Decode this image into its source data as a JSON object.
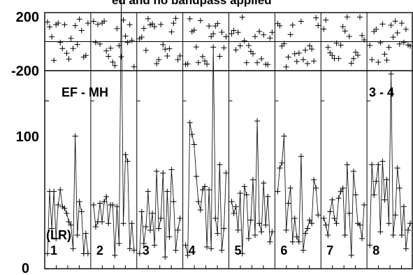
{
  "title_fragment": "ed and no bandpass applied",
  "baseline_label": "EF - MH",
  "ifchan_label": "3 - 4",
  "polarization_label": "(LR)",
  "amp_ticks": [
    "0",
    "100"
  ],
  "phase_ticks": [
    "200",
    "-200"
  ],
  "chart_data": {
    "type": "scatter",
    "title": "ed and no bandpass applied",
    "baseline": "EF - MH",
    "if_range": "3 - 4",
    "polarization": "(LR)",
    "panels": [
      "1",
      "2",
      "3",
      "4",
      "5",
      "6",
      "7",
      "8"
    ],
    "amplitude_ylim": [
      0,
      118
    ],
    "phase_ylim": [
      -200,
      200
    ],
    "amplitude_series": [
      [
        9,
        46,
        24,
        46,
        18,
        38,
        47,
        37,
        36,
        33,
        28,
        26,
        12,
        79,
        20,
        40,
        34,
        9,
        21,
        9
      ],
      [
        38,
        25,
        28,
        39,
        28,
        40,
        43,
        27,
        38,
        38,
        8,
        37,
        15,
        161,
        27,
        68,
        64,
        12,
        27,
        11
      ],
      [
        9,
        34,
        15,
        25,
        46,
        23,
        33,
        14,
        58,
        24,
        30,
        57,
        7,
        46,
        19,
        59,
        40,
        11,
        23,
        30
      ],
      [
        14,
        8,
        87,
        80,
        74,
        55,
        40,
        35,
        47,
        49,
        13,
        47,
        12,
        132,
        30,
        21,
        62,
        11,
        24,
        57
      ],
      [
        40,
        33,
        37,
        23,
        45,
        9,
        49,
        44,
        18,
        29,
        53,
        20,
        88,
        27,
        22,
        51,
        26,
        43,
        16,
        22
      ],
      [
        46,
        60,
        63,
        79,
        23,
        39,
        48,
        16,
        30,
        19,
        16,
        67,
        11,
        21,
        24,
        29,
        27,
        53,
        48,
        32
      ],
      [
        30,
        26,
        20,
        34,
        41,
        30,
        27,
        42,
        46,
        48,
        20,
        62,
        33,
        8,
        58,
        44,
        27,
        26,
        18,
        38
      ],
      [
        14,
        62,
        44,
        52,
        62,
        22,
        64,
        41,
        53,
        27,
        116,
        20,
        32,
        60,
        48,
        20,
        37,
        12,
        23,
        27
      ]
    ],
    "phase_series": [
      [
        135,
        101,
        33,
        -129,
        117,
        128,
        -6,
        -47,
        117,
        -80,
        -120,
        22,
        -47,
        110,
        -19,
        155,
        77,
        -106,
        -95,
        127
      ],
      [
        140,
        -6,
        119,
        -16,
        128,
        141,
        -64,
        -101,
        -45,
        -141,
        -165,
        90,
        -28,
        -104,
        148,
        38,
        -6,
        117,
        9,
        -173
      ],
      [
        20,
        31,
        91,
        -60,
        158,
        115,
        122,
        103,
        -152,
        -124,
        118,
        -21,
        -52,
        -99,
        -49,
        67,
        127,
        160,
        -124,
        -98
      ],
      [
        -156,
        -153,
        157,
        69,
        79,
        -37,
        -144,
        145,
        -103,
        -133,
        -155,
        108,
        35,
        54,
        108,
        125,
        -101,
        65,
        -43,
        34
      ],
      [
        55,
        77,
        -57,
        64,
        -29,
        168,
        6,
        -145,
        -27,
        -67,
        -84,
        35,
        -145,
        70,
        -118,
        47,
        -156,
        -158,
        25,
        64
      ],
      [
        124,
        109,
        -31,
        -14,
        -174,
        -106,
        48,
        114,
        -84,
        -137,
        -79,
        140,
        -124,
        -59,
        -151,
        -29,
        -51,
        -134,
        164,
        111
      ],
      [
        87,
        149,
        -40,
        -77,
        -95,
        -116,
        -11,
        -116,
        -24,
        103,
        73,
        170,
        36,
        -149,
        -117,
        -73,
        -94,
        169,
        42,
        12
      ],
      [
        -26,
        -124,
        70,
        85,
        -142,
        -8,
        121,
        -86,
        -128,
        -39,
        113,
        31,
        141,
        60,
        -16,
        127,
        -6,
        85,
        -22,
        -30
      ]
    ]
  }
}
